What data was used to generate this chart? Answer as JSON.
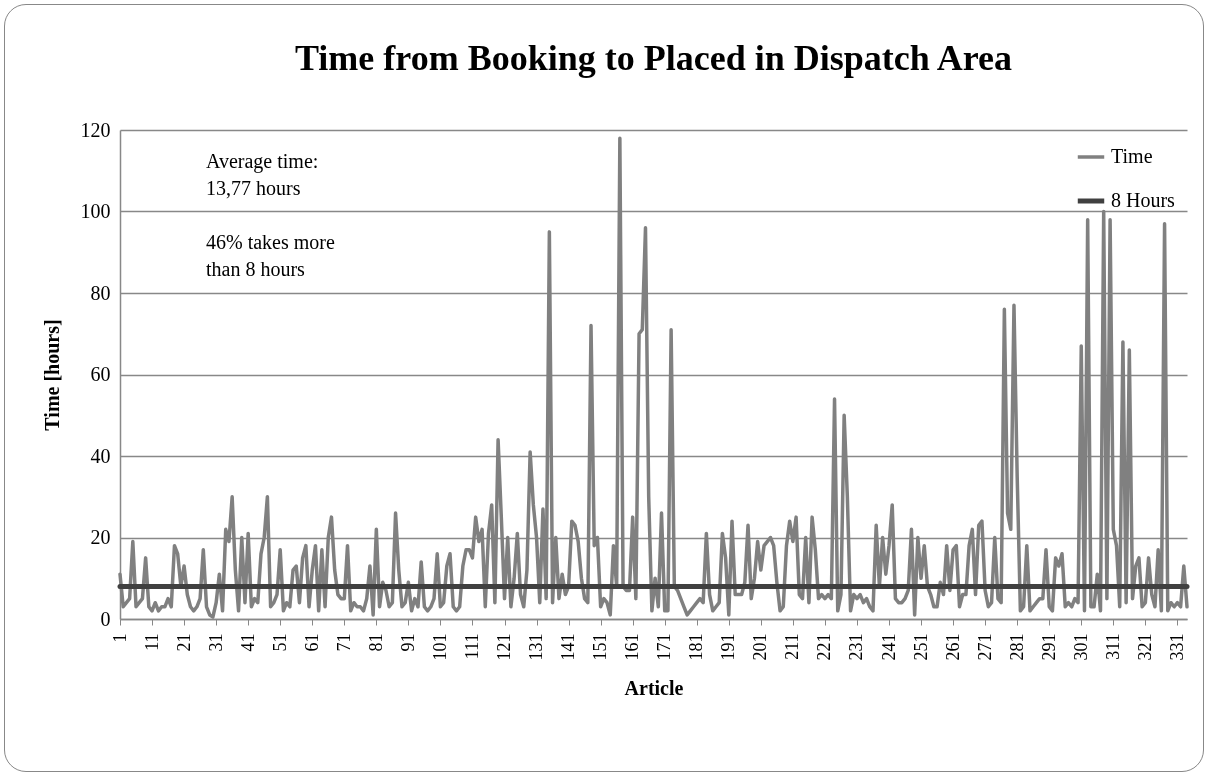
{
  "chart_data": {
    "type": "line",
    "title": "Time from Booking to Placed in Dispatch Area",
    "xlabel": "Article",
    "ylabel": "Time [hours]",
    "annotations": [
      "Average time: 13,77 hours",
      "46% takes more than 8 hours"
    ],
    "x": [
      1,
      2,
      3,
      4,
      5,
      6,
      7,
      8,
      9,
      10,
      11,
      12,
      13,
      14,
      15,
      16,
      17,
      18,
      19,
      20,
      21,
      22,
      23,
      24,
      25,
      26,
      27,
      28,
      29,
      30,
      31,
      32,
      33,
      34,
      35,
      36,
      37,
      38,
      39,
      40,
      41,
      42,
      43,
      44,
      45,
      46,
      47,
      48,
      49,
      50,
      51,
      52,
      53,
      54,
      55,
      56,
      57,
      58,
      59,
      60,
      61,
      62,
      63,
      64,
      65,
      66,
      67,
      68,
      69,
      70,
      71,
      72,
      73,
      74,
      75,
      76,
      77,
      78,
      79,
      80,
      81,
      82,
      83,
      84,
      85,
      86,
      87,
      88,
      89,
      90,
      91,
      92,
      93,
      94,
      95,
      96,
      97,
      98,
      99,
      100,
      101,
      102,
      103,
      104,
      105,
      106,
      107,
      108,
      109,
      110,
      111,
      112,
      113,
      114,
      115,
      116,
      117,
      118,
      119,
      120,
      121,
      122,
      123,
      124,
      125,
      126,
      127,
      128,
      129,
      130,
      131,
      132,
      133,
      134,
      135,
      136,
      137,
      138,
      139,
      140,
      141,
      142,
      143,
      144,
      145,
      146,
      147,
      148,
      149,
      150,
      151,
      152,
      153,
      154,
      155,
      156,
      157,
      158,
      159,
      160,
      161,
      162,
      163,
      164,
      165,
      166,
      167,
      168,
      169,
      170,
      171,
      172,
      173,
      174,
      175,
      176,
      177,
      178,
      179,
      180,
      181,
      182,
      183,
      184,
      185,
      186,
      187,
      188,
      189,
      190,
      191,
      192,
      193,
      194,
      195,
      196,
      197,
      198,
      199,
      200,
      201,
      202,
      203,
      204,
      205,
      206,
      207,
      208,
      209,
      210,
      211,
      212,
      213,
      214,
      215,
      216,
      217,
      218,
      219,
      220,
      221,
      222,
      223,
      224,
      225,
      226,
      227,
      228,
      229,
      230,
      231,
      232,
      233,
      234,
      235,
      236,
      237,
      238,
      239,
      240,
      241,
      242,
      243,
      244,
      245,
      246,
      247,
      248,
      249,
      250,
      251,
      252,
      253,
      254,
      255,
      256,
      257,
      258,
      259,
      260,
      261,
      262,
      263,
      264,
      265,
      266,
      267,
      268,
      269,
      270,
      271,
      272,
      273,
      274,
      275,
      276,
      277,
      278,
      279,
      280,
      281,
      282,
      283,
      284,
      285,
      286,
      287,
      288,
      289,
      290,
      291,
      292,
      293,
      294,
      295,
      296,
      297,
      298,
      299,
      300,
      301,
      302,
      303,
      304,
      305,
      306,
      307,
      308,
      309,
      310,
      311,
      312,
      313,
      314,
      315,
      316,
      317,
      318,
      319,
      320,
      321,
      322,
      323,
      324,
      325,
      326,
      327,
      328,
      329,
      330,
      331,
      332,
      333,
      334
    ],
    "series": [
      {
        "name": "Time",
        "color": "#808080",
        "values": [
          11,
          3,
          4,
          5,
          19,
          3,
          4,
          5,
          15,
          3,
          2,
          4,
          2,
          3,
          3,
          5,
          3,
          18,
          16,
          8,
          13,
          6,
          3,
          2,
          3,
          5,
          17,
          3,
          1,
          0.5,
          4,
          11,
          2,
          22,
          19,
          30,
          12,
          2,
          20,
          4,
          21,
          3,
          5,
          4,
          16,
          20,
          30,
          3,
          4,
          6,
          17,
          2,
          4,
          3,
          12,
          13,
          4,
          15,
          18,
          3,
          12,
          18,
          2,
          17,
          3,
          20,
          25,
          12,
          6,
          5,
          5,
          18,
          2,
          4,
          3,
          3,
          2,
          5,
          13,
          1,
          22,
          3,
          9,
          7,
          3,
          4,
          26,
          12,
          3,
          4,
          9,
          2,
          5,
          3,
          14,
          3,
          2,
          3,
          5,
          16,
          3,
          4,
          13,
          16,
          3,
          2,
          3,
          13,
          17,
          17,
          15,
          25,
          19,
          22,
          3,
          21,
          28,
          4,
          44,
          25,
          5,
          20,
          3,
          10,
          21,
          6,
          3,
          12,
          41,
          28,
          20,
          4,
          27,
          5,
          95,
          4,
          20,
          5,
          11,
          6,
          8,
          24,
          23,
          19,
          10,
          5,
          4,
          72,
          18,
          20,
          3,
          5,
          4,
          1,
          18,
          8,
          118,
          8,
          7,
          7,
          25,
          5,
          70,
          71,
          96,
          30,
          2,
          10,
          3,
          26,
          2,
          2,
          71,
          8,
          7,
          5,
          3,
          1,
          2,
          3,
          4,
          5,
          4,
          21,
          6,
          2,
          3,
          4,
          21,
          15,
          1,
          24,
          6,
          6,
          6,
          9,
          23,
          5,
          10,
          19,
          12,
          18,
          19,
          20,
          18,
          9,
          2,
          3,
          18,
          24,
          19,
          25,
          6,
          5,
          20,
          4,
          25,
          17,
          5,
          6,
          5,
          6,
          5,
          54,
          2,
          6,
          50,
          30,
          2,
          6,
          5,
          6,
          4,
          5,
          3,
          2,
          23,
          8,
          20,
          11,
          18,
          28,
          5,
          4,
          4,
          5,
          7,
          22,
          1,
          20,
          10,
          18,
          8,
          6,
          3,
          3,
          9,
          6,
          18,
          7,
          17,
          18,
          3,
          6,
          6,
          18,
          22,
          6,
          23,
          24,
          7,
          3,
          4,
          20,
          5,
          4,
          76,
          26,
          22,
          77,
          35,
          2,
          3,
          18,
          2,
          3,
          4,
          5,
          5,
          17,
          3,
          2,
          15,
          13,
          16,
          3,
          4,
          3,
          5,
          4,
          67,
          2,
          98,
          3,
          3,
          11,
          2,
          100,
          5,
          98,
          22,
          18,
          3,
          68,
          4,
          66,
          5,
          13,
          15,
          3,
          4,
          15,
          6,
          3,
          17,
          2,
          97,
          2,
          4,
          3,
          4,
          3,
          13,
          3
        ]
      },
      {
        "name": "8 Hours",
        "color": "#404040",
        "x": [
          1,
          334
        ],
        "values": [
          8,
          8
        ]
      }
    ],
    "xlim": [
      1,
      334
    ],
    "xticks": [
      1,
      11,
      21,
      31,
      41,
      51,
      61,
      71,
      81,
      91,
      101,
      111,
      121,
      131,
      141,
      151,
      161,
      171,
      181,
      191,
      201,
      211,
      221,
      231,
      241,
      251,
      261,
      271,
      281,
      291,
      301,
      311,
      321,
      331
    ],
    "ylim": [
      0,
      120
    ],
    "yticks": [
      0,
      20,
      40,
      60,
      80,
      100,
      120
    ],
    "grid": "y",
    "legend": "top right",
    "line_style": "solid"
  }
}
